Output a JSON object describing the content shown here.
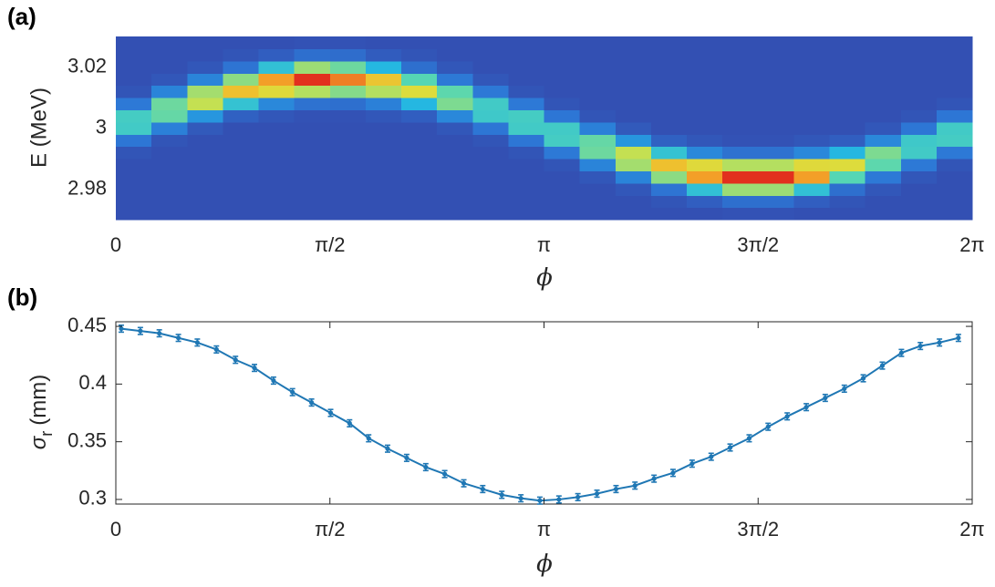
{
  "chart_data": [
    {
      "type": "heatmap",
      "title": "(a)",
      "xlabel": "ϕ",
      "ylabel": "E (MeV)",
      "xlim": [
        0,
        6.2832
      ],
      "ylim": [
        2.97,
        3.03
      ],
      "xticks": [
        {
          "value": 0,
          "label": "0"
        },
        {
          "value": 1.5708,
          "label": "π/2"
        },
        {
          "value": 3.1416,
          "label": "π"
        },
        {
          "value": 4.7124,
          "label": "3π/2"
        },
        {
          "value": 6.2832,
          "label": "2π"
        }
      ],
      "yticks": [
        2.98,
        3,
        3.02
      ],
      "clim": [
        0,
        100
      ],
      "colormap": [
        "#3350b3",
        "#2d78d6",
        "#20b4e6",
        "#55d6b4",
        "#d9e23f",
        "#f6b42a",
        "#e2301e"
      ],
      "z": [
        [
          0,
          0,
          0,
          0,
          0,
          2,
          16,
          44,
          45,
          17,
          2,
          0,
          0,
          0,
          0
        ],
        [
          0,
          0,
          0,
          0,
          0,
          0,
          2,
          19,
          52,
          53,
          20,
          3,
          0,
          0,
          0
        ],
        [
          0,
          0,
          0,
          0,
          0,
          0,
          0,
          4,
          25,
          64,
          60,
          20,
          3,
          0,
          0
        ],
        [
          0,
          0,
          0,
          0,
          0,
          0,
          0,
          0,
          7,
          40,
          79,
          57,
          15,
          2,
          0
        ],
        [
          0,
          0,
          0,
          0,
          0,
          0,
          0,
          0,
          3,
          21,
          70,
          86,
          39,
          6,
          0
        ],
        [
          0,
          0,
          0,
          0,
          0,
          0,
          0,
          0,
          1,
          14,
          62,
          100,
          59,
          13,
          1
        ],
        [
          0,
          0,
          0,
          0,
          0,
          0,
          0,
          0,
          1,
          13,
          56,
          90,
          53,
          12,
          1
        ],
        [
          0,
          0,
          0,
          0,
          0,
          0,
          0,
          0,
          3,
          19,
          62,
          77,
          35,
          5,
          0
        ],
        [
          0,
          0,
          0,
          0,
          0,
          0,
          0,
          0,
          6,
          35,
          69,
          50,
          13,
          2,
          0
        ],
        [
          0,
          0,
          0,
          0,
          0,
          0,
          0,
          3,
          21,
          55,
          51,
          17,
          3,
          0,
          0
        ],
        [
          0,
          0,
          0,
          0,
          0,
          0,
          2,
          16,
          43,
          44,
          17,
          3,
          0,
          0,
          0
        ],
        [
          0,
          0,
          0,
          0,
          0,
          2,
          16,
          44,
          45,
          17,
          2,
          0,
          0,
          0,
          0
        ],
        [
          0,
          0,
          0,
          0,
          2,
          17,
          45,
          44,
          16,
          2,
          0,
          0,
          0,
          0,
          0
        ],
        [
          0,
          0,
          0,
          3,
          20,
          53,
          52,
          19,
          2,
          0,
          0,
          0,
          0,
          0,
          0
        ],
        [
          0,
          0,
          3,
          20,
          60,
          64,
          25,
          4,
          0,
          0,
          0,
          0,
          0,
          0,
          0
        ],
        [
          0,
          2,
          15,
          57,
          79,
          40,
          7,
          0,
          0,
          0,
          0,
          0,
          0,
          0,
          0
        ],
        [
          0,
          6,
          39,
          86,
          70,
          21,
          3,
          0,
          0,
          0,
          0,
          0,
          0,
          0,
          0
        ],
        [
          1,
          13,
          59,
          100,
          62,
          14,
          1,
          0,
          0,
          0,
          0,
          0,
          0,
          0,
          0
        ],
        [
          1,
          13,
          59,
          100,
          62,
          14,
          1,
          0,
          0,
          0,
          0,
          0,
          0,
          0,
          0
        ],
        [
          0,
          6,
          39,
          86,
          70,
          21,
          3,
          0,
          0,
          0,
          0,
          0,
          0,
          0,
          0
        ],
        [
          0,
          2,
          13,
          50,
          69,
          35,
          6,
          0,
          0,
          0,
          0,
          0,
          0,
          0,
          0
        ],
        [
          0,
          0,
          3,
          17,
          51,
          55,
          21,
          3,
          0,
          0,
          0,
          0,
          0,
          0,
          0
        ],
        [
          0,
          0,
          0,
          3,
          17,
          44,
          43,
          16,
          2,
          0,
          0,
          0,
          0,
          0,
          0
        ],
        [
          0,
          0,
          0,
          0,
          2,
          17,
          45,
          44,
          16,
          2,
          0,
          0,
          0,
          0,
          0
        ]
      ]
    },
    {
      "type": "errorbar",
      "title": "(b)",
      "xlabel": "ϕ",
      "ylabel": {
        "symbol": "σ",
        "subscript": "r",
        "unit": "(mm)"
      },
      "xlim": [
        0,
        6.2832
      ],
      "ylim": [
        0.296,
        0.454
      ],
      "box": true,
      "xticks": [
        {
          "value": 0,
          "label": "0"
        },
        {
          "value": 1.5708,
          "label": "π/2"
        },
        {
          "value": 3.1416,
          "label": "π"
        },
        {
          "value": 4.7124,
          "label": "3π/2"
        },
        {
          "value": 6.2832,
          "label": "2π"
        }
      ],
      "yticks": [
        0.3,
        0.35,
        0.4,
        0.45
      ],
      "color": "#1f77b4",
      "x": [
        0.04,
        0.18,
        0.319,
        0.459,
        0.598,
        0.738,
        0.878,
        1.017,
        1.157,
        1.296,
        1.436,
        1.576,
        1.715,
        1.855,
        1.994,
        2.134,
        2.274,
        2.413,
        2.553,
        2.692,
        2.832,
        2.972,
        3.111,
        3.251,
        3.39,
        3.53,
        3.67,
        3.809,
        3.949,
        4.088,
        4.228,
        4.368,
        4.507,
        4.647,
        4.786,
        4.926,
        5.066,
        5.205,
        5.345,
        5.484,
        5.624,
        5.764,
        5.903,
        6.043,
        6.182
      ],
      "values": [
        0.448,
        0.446,
        0.444,
        0.44,
        0.436,
        0.43,
        0.421,
        0.414,
        0.403,
        0.393,
        0.384,
        0.375,
        0.366,
        0.353,
        0.344,
        0.336,
        0.328,
        0.322,
        0.314,
        0.309,
        0.304,
        0.301,
        0.299,
        0.3,
        0.302,
        0.305,
        0.309,
        0.312,
        0.318,
        0.323,
        0.331,
        0.337,
        0.345,
        0.353,
        0.363,
        0.372,
        0.38,
        0.388,
        0.396,
        0.405,
        0.416,
        0.427,
        0.433,
        0.436,
        0.44
      ],
      "errors": [
        0.003,
        0.003,
        0.003,
        0.003,
        0.003,
        0.003,
        0.003,
        0.003,
        0.003,
        0.003,
        0.003,
        0.003,
        0.003,
        0.003,
        0.003,
        0.003,
        0.003,
        0.003,
        0.003,
        0.003,
        0.003,
        0.003,
        0.003,
        0.003,
        0.003,
        0.003,
        0.003,
        0.003,
        0.003,
        0.003,
        0.003,
        0.003,
        0.003,
        0.003,
        0.003,
        0.003,
        0.003,
        0.003,
        0.003,
        0.003,
        0.003,
        0.003,
        0.003,
        0.003,
        0.003
      ]
    }
  ]
}
